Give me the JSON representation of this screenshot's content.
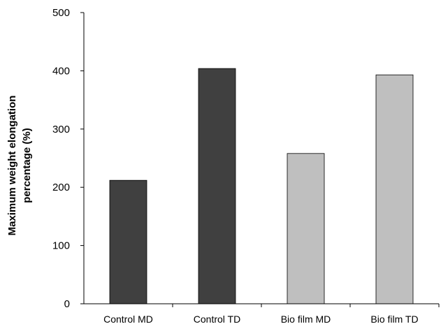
{
  "chart_data": {
    "type": "bar",
    "title": "",
    "xlabel": "",
    "ylabel": "Maximum weight elongation percentage (%)",
    "ylabel_lines": [
      "Maximum weight elongation",
      "percentage (%)"
    ],
    "categories": [
      "Control MD",
      "Control TD",
      "Bio film MD",
      "Bio film TD"
    ],
    "values": [
      212,
      404,
      258,
      393
    ],
    "bar_colors": [
      "#404040",
      "#404040",
      "#bfbfbf",
      "#bfbfbf"
    ],
    "bar_edge_color": "#000000",
    "ylim": [
      0,
      500
    ],
    "yticks": [
      0,
      100,
      200,
      300,
      400,
      500
    ],
    "grid": false,
    "legend": "none"
  }
}
